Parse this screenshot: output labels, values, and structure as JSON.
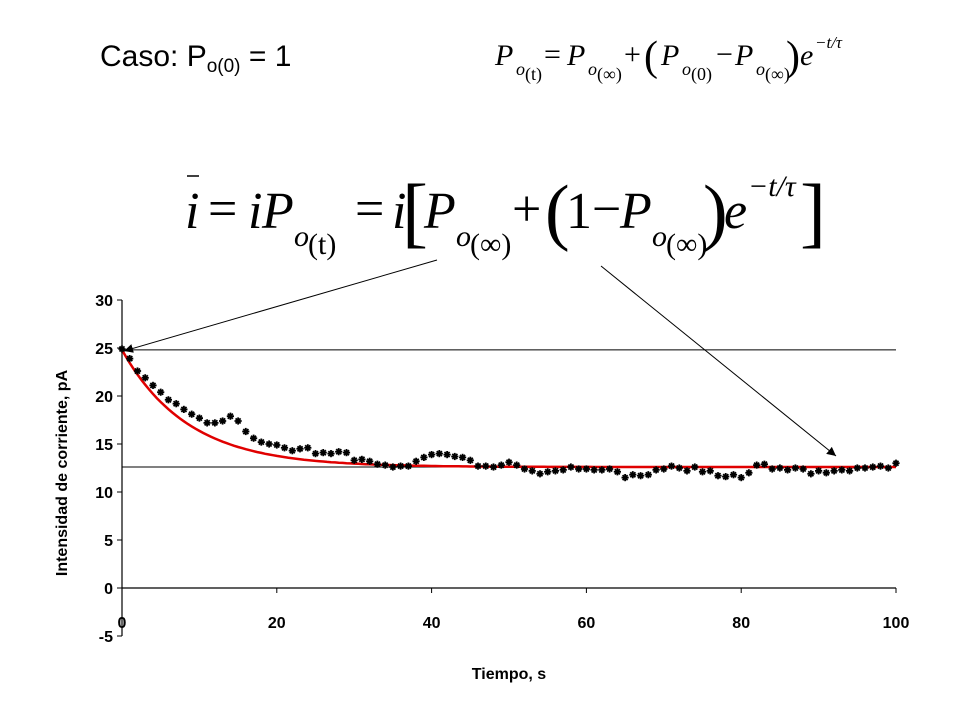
{
  "slide": {
    "title_main": "Caso: P",
    "title_sub": "o(0)",
    "title_end": " = 1"
  },
  "equations": {
    "general": {
      "lhs_P": "P",
      "lhs_sub": "o",
      "lhs_arg": "(t)",
      "eq": "=",
      "t1_P": "P",
      "t1_sub": "o",
      "t1_arg": "(∞)",
      "plus": "+",
      "lparen": "(",
      "t2_P": "P",
      "t2_sub": "o",
      "t2_arg": "(0)",
      "minus": "−",
      "t3_P": "P",
      "t3_sub": "o",
      "t3_arg": "(∞)",
      "rparen": ")",
      "e": "e",
      "exp": "−t/τ"
    },
    "current": {
      "ibar": "i",
      "eq1": "=",
      "i2": "i",
      "P1": "P",
      "P1_sub": "o",
      "P1_arg": "(t)",
      "eq2": "=",
      "i3": "i",
      "lbracket": "[",
      "P2": "P",
      "P2_sub": "o",
      "P2_arg": "(∞)",
      "plus": "+",
      "lparen": "(",
      "one": "1",
      "minus": "−",
      "P3": "P",
      "P3_sub": "o",
      "P3_arg": "(∞)",
      "rparen": ")",
      "e": "e",
      "exp": "−t/τ",
      "rbracket": "]"
    }
  },
  "chart_data": {
    "type": "scatter",
    "xlabel": "Tiempo, s",
    "ylabel": "Intensidad de corriente, pA",
    "xlim": [
      0,
      100
    ],
    "ylim": [
      -5,
      30
    ],
    "x_ticks": [
      0,
      20,
      40,
      60,
      80,
      100
    ],
    "y_ticks": [
      -5,
      0,
      5,
      10,
      15,
      20,
      25,
      30
    ],
    "grid": false,
    "reference_lines_y": [
      24.8,
      12.6
    ],
    "colors": {
      "points": "#000000",
      "fit": "#e00000",
      "axes": "#000000"
    },
    "series": [
      {
        "kind": "points",
        "x": [
          0,
          1,
          2,
          3,
          4,
          5,
          6,
          7,
          8,
          9,
          10,
          11,
          12,
          13,
          14,
          15,
          16,
          17,
          18,
          19,
          20,
          21,
          22,
          23,
          24,
          25,
          26,
          27,
          28,
          29,
          30,
          31,
          32,
          33,
          34,
          35,
          36,
          37,
          38,
          39,
          40,
          41,
          42,
          43,
          44,
          45,
          46,
          47,
          48,
          49,
          50,
          51,
          52,
          53,
          54,
          55,
          56,
          57,
          58,
          59,
          60,
          61,
          62,
          63,
          64,
          65,
          66,
          67,
          68,
          69,
          70,
          71,
          72,
          73,
          74,
          75,
          76,
          77,
          78,
          79,
          80,
          81,
          82,
          83,
          84,
          85,
          86,
          87,
          88,
          89,
          90,
          91,
          92,
          93,
          94,
          95,
          96,
          97,
          98,
          99,
          100
        ],
        "y": [
          24.9,
          23.9,
          22.6,
          21.9,
          21.1,
          20.4,
          19.6,
          19.2,
          18.6,
          18.1,
          17.7,
          17.2,
          17.2,
          17.4,
          17.9,
          17.4,
          16.3,
          15.6,
          15.2,
          15.0,
          14.9,
          14.6,
          14.3,
          14.5,
          14.6,
          14.0,
          14.1,
          14.0,
          14.2,
          14.1,
          13.3,
          13.4,
          13.2,
          12.9,
          12.8,
          12.6,
          12.7,
          12.7,
          13.2,
          13.6,
          13.9,
          14.0,
          13.9,
          13.7,
          13.6,
          13.3,
          12.7,
          12.7,
          12.6,
          12.8,
          13.1,
          12.8,
          12.4,
          12.2,
          11.9,
          12.1,
          12.2,
          12.3,
          12.6,
          12.4,
          12.4,
          12.3,
          12.3,
          12.4,
          12.1,
          11.5,
          11.8,
          11.7,
          11.8,
          12.3,
          12.4,
          12.7,
          12.5,
          12.2,
          12.6,
          12.1,
          12.2,
          11.7,
          11.6,
          11.8,
          11.5,
          12.0,
          12.8,
          12.9,
          12.4,
          12.5,
          12.3,
          12.5,
          12.4,
          11.9,
          12.2,
          12.0,
          12.2,
          12.3,
          12.2,
          12.5,
          12.5,
          12.6,
          12.7,
          12.5,
          13.0
        ]
      },
      {
        "kind": "fit",
        "formula": "12.6 + 12.2*exp(-t/8.5)"
      }
    ]
  }
}
